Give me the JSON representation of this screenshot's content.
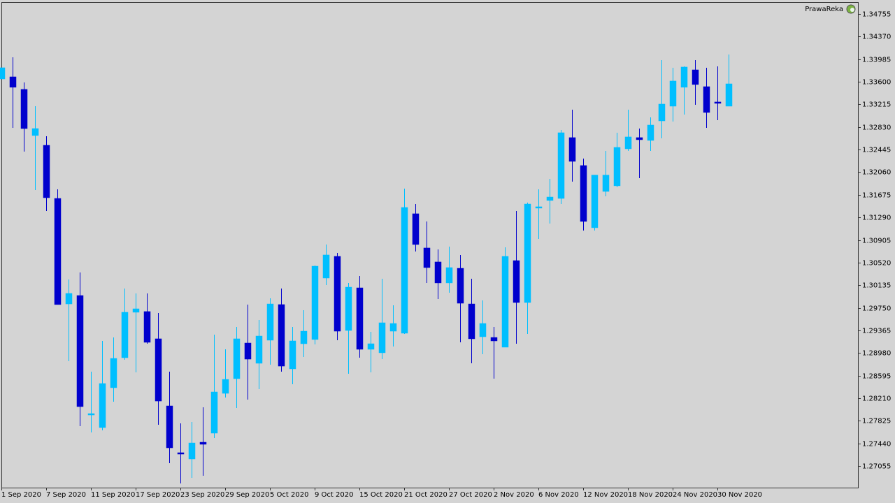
{
  "chart_data": {
    "type": "candlestick",
    "annotations": [
      "PrawaReka"
    ],
    "categories": [
      "1 Sep 2020",
      null,
      null,
      null,
      "7 Sep 2020",
      null,
      null,
      null,
      "11 Sep 2020",
      null,
      null,
      null,
      "17 Sep 2020",
      null,
      null,
      null,
      "23 Sep 2020",
      null,
      null,
      null,
      "29 Sep 2020",
      null,
      null,
      null,
      "5 Oct 2020",
      null,
      null,
      null,
      "9 Oct 2020",
      null,
      null,
      null,
      "15 Oct 2020",
      null,
      null,
      null,
      "21 Oct 2020",
      null,
      null,
      null,
      "27 Oct 2020",
      null,
      null,
      null,
      "2 Nov 2020",
      null,
      null,
      null,
      "6 Nov 2020",
      null,
      null,
      null,
      "12 Nov 2020",
      null,
      null,
      null,
      "18 Nov 2020",
      null,
      null,
      null,
      "24 Nov 2020",
      null,
      null,
      null,
      "30 Nov 2020",
      null
    ],
    "open": [
      1.33648,
      1.33684,
      1.3347,
      1.32684,
      1.32518,
      1.31613,
      1.29816,
      1.29959,
      1.27948,
      1.2771,
      1.28389,
      1.289,
      1.29674,
      1.29686,
      1.29222,
      1.28079,
      1.27282,
      1.27175,
      1.2746,
      1.27615,
      1.28293,
      1.28543,
      1.2915,
      1.28805,
      1.29198,
      1.29805,
      1.2871,
      1.29138,
      1.2921,
      1.30257,
      1.30626,
      1.29364,
      1.3009,
      1.29043,
      1.28984,
      1.29352,
      1.29317,
      1.31352,
      1.30769,
      1.30531,
      1.30174,
      1.30423,
      1.29816,
      1.29257,
      1.29245,
      1.29079,
      1.30554,
      1.2984,
      1.31459,
      1.31578,
      1.31613,
      1.32649,
      1.32173,
      1.31114,
      1.31732,
      1.31828,
      1.32458,
      1.32649,
      1.32601,
      1.32934,
      1.33184,
      1.33506,
      1.33803,
      1.33517,
      1.33256,
      1.33184
    ],
    "high": [
      1.33839,
      1.34017,
      1.33589,
      1.33184,
      1.32673,
      1.31768,
      1.30233,
      1.30352,
      1.28662,
      1.29186,
      1.29245,
      1.30078,
      1.29995,
      1.29995,
      1.29662,
      1.28662,
      1.27782,
      1.27805,
      1.28055,
      1.29293,
      1.29043,
      1.29424,
      1.29805,
      1.29543,
      1.29912,
      1.30078,
      1.29424,
      1.29709,
      1.30471,
      1.30828,
      1.30685,
      1.30174,
      1.30293,
      1.29341,
      1.30245,
      1.29793,
      1.3178,
      1.31518,
      1.31221,
      1.30745,
      1.30792,
      1.3065,
      1.30245,
      1.29876,
      1.29424,
      1.3078,
      1.31399,
      1.31542,
      1.31768,
      1.31947,
      1.3278,
      1.33125,
      1.32292,
      1.32011,
      1.32423,
      1.32732,
      1.33125,
      1.32803,
      1.32994,
      1.3397,
      1.33839,
      1.33863,
      1.3397,
      1.33839,
      1.33863,
      1.34065
    ],
    "low": [
      1.33648,
      1.32815,
      1.32411,
      1.31756,
      1.31399,
      1.29805,
      1.28841,
      1.27734,
      1.27627,
      1.27663,
      1.28151,
      1.28865,
      1.2865,
      1.29138,
      1.27758,
      1.27103,
      1.26758,
      1.26853,
      1.26889,
      1.27532,
      1.28222,
      1.28043,
      1.28186,
      1.28365,
      1.28781,
      1.28662,
      1.28448,
      1.28912,
      1.29126,
      1.30138,
      1.29198,
      1.28627,
      1.289,
      1.2865,
      1.28876,
      1.29091,
      1.29305,
      1.30709,
      1.30174,
      1.299,
      1.30007,
      1.29162,
      1.28805,
      1.2896,
      1.28543,
      1.29079,
      1.29138,
      1.29305,
      1.30923,
      1.31185,
      1.31518,
      1.31899,
      1.31066,
      1.31066,
      1.31649,
      1.31804,
      1.32423,
      1.31959,
      1.32423,
      1.32637,
      1.32922,
      1.33041,
      1.33208,
      1.32815,
      1.32946,
      1.33184
    ],
    "close": [
      1.33839,
      1.33506,
      1.32803,
      1.32803,
      1.31625,
      1.29805,
      1.29995,
      1.28067,
      1.27948,
      1.2846,
      1.28888,
      1.29674,
      1.29733,
      1.29162,
      1.28162,
      1.27365,
      1.27258,
      1.27448,
      1.27425,
      1.28317,
      1.28531,
      1.29222,
      1.28876,
      1.29269,
      1.29816,
      1.28757,
      1.29186,
      1.29352,
      1.30459,
      1.3065,
      1.29352,
      1.30102,
      1.29043,
      1.29138,
      1.29495,
      1.29483,
      1.31459,
      1.30828,
      1.30435,
      1.30174,
      1.30435,
      1.29828,
      1.29222,
      1.29483,
      1.29186,
      1.30626,
      1.2984,
      1.31518,
      1.31471,
      1.31637,
      1.32732,
      1.32244,
      1.31221,
      1.32011,
      1.32011,
      1.32482,
      1.32661,
      1.32613,
      1.32863,
      1.3322,
      1.33613,
      1.33851,
      1.33553,
      1.33077,
      1.33232,
      1.33565
    ],
    "up_color": "#00bfff",
    "down_color": "#0000cd",
    "ylim": [
      1.26687,
      1.34957
    ],
    "yticks": [
      1.34755,
      {
        "value": 1.3437,
        "label": "1.34370"
      },
      1.33985,
      {
        "value": 1.336,
        "label": "1.33600"
      },
      1.33215,
      {
        "value": 1.3283,
        "label": "1.32830"
      },
      1.32445,
      {
        "value": 1.3206,
        "label": "1.32060"
      },
      1.31675,
      {
        "value": 1.3129,
        "label": "1.31290"
      },
      1.30905,
      {
        "value": 1.3052,
        "label": "1.30520"
      },
      1.30135,
      {
        "value": 1.2975,
        "label": "1.29750"
      },
      1.29365,
      {
        "value": 1.2898,
        "label": "1.28980"
      },
      1.28595,
      {
        "value": 1.2821,
        "label": "1.28210"
      },
      1.27825,
      {
        "value": 1.2744,
        "label": "1.27440"
      },
      1.27055
    ]
  }
}
